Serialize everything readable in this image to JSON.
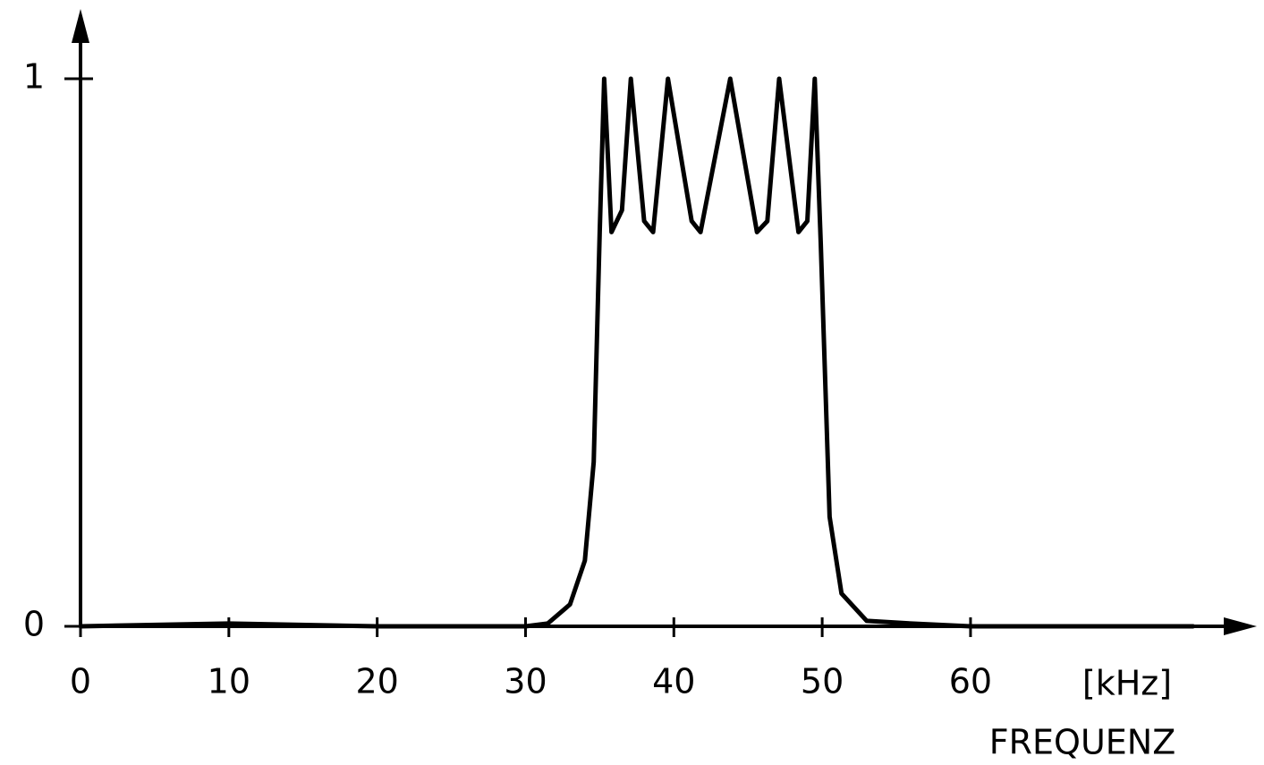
{
  "chart_data": {
    "type": "line",
    "x_unit": "[kHz]",
    "x_label": "FREQUENZ",
    "x": [
      0,
      10,
      20,
      30,
      31.5,
      33,
      34,
      34.6,
      35,
      35.3,
      35.8,
      36.5,
      37.1,
      38.0,
      38.6,
      39.6,
      41.2,
      41.8,
      43.8,
      45.6,
      46.3,
      47.1,
      48.4,
      49.0,
      49.5,
      49.9,
      50.5,
      51.3,
      53,
      56,
      60,
      70,
      75
    ],
    "values": [
      0,
      0.005,
      0,
      0,
      0.005,
      0.04,
      0.12,
      0.3,
      0.72,
      1.0,
      0.72,
      0.76,
      1.0,
      0.74,
      0.72,
      1.0,
      0.74,
      0.72,
      1.0,
      0.72,
      0.74,
      1.0,
      0.72,
      0.74,
      1.0,
      0.7,
      0.2,
      0.06,
      0.01,
      0.005,
      0,
      0,
      0
    ],
    "color": "#000000",
    "xlim": [
      0,
      79
    ],
    "ylim": [
      0,
      1.13
    ],
    "xticks": [
      0,
      10,
      20,
      30,
      40,
      50,
      60
    ],
    "yticks": [
      0,
      1
    ]
  }
}
